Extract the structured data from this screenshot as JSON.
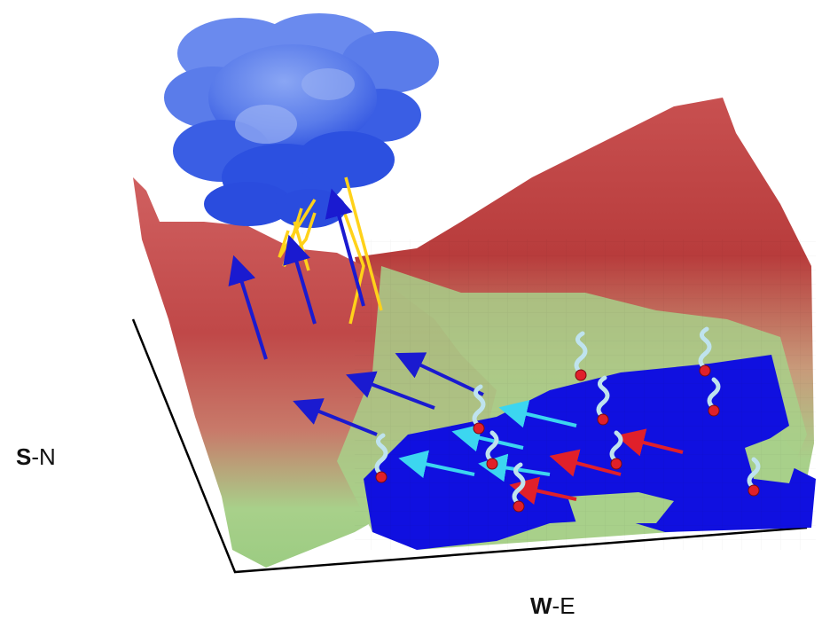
{
  "axes": {
    "sn": {
      "bold": "S",
      "rest": "-N"
    },
    "we": {
      "bold": "W",
      "rest": "-E"
    }
  },
  "colors": {
    "ridge_high": "#b23a3a",
    "ridge_mid": "#d47070",
    "slope_low": "#a8d08a",
    "water": "#1010e0",
    "cloud": "#4a6ee6",
    "cloud_light": "#7f9cf0",
    "lightning": "#ffd21a",
    "updraft_arrow": "#1a1ad0",
    "wind_arrow_cyan": "#3cd6f0",
    "wind_arrow_red": "#e0202a",
    "evaporation": "#bfe3ee",
    "droplet": "#e0202a"
  },
  "icons": [
    "cloud-icon",
    "lightning-icon",
    "arrow-icon",
    "evaporation-icon"
  ]
}
